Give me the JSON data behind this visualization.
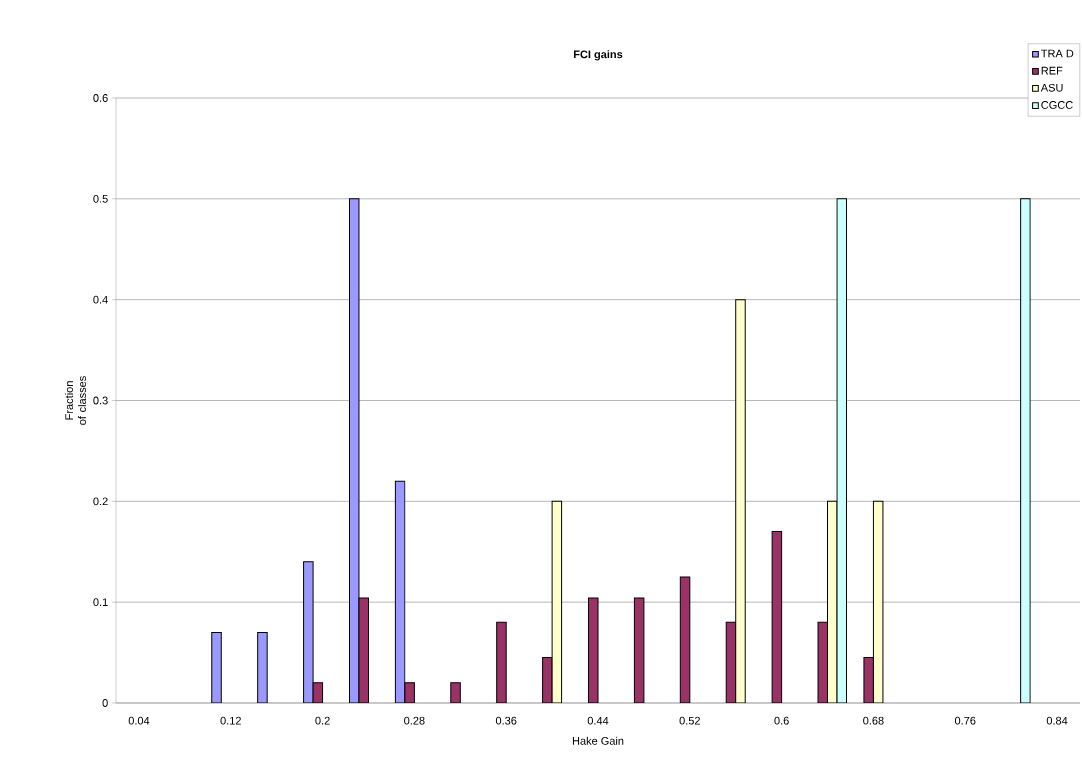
{
  "chart_data": {
    "type": "bar",
    "title": "FCI gains",
    "xlabel": "Hake Gain",
    "ylabel": "Fraction of classes",
    "categories": [
      "0.04",
      null,
      "0.12",
      null,
      "0.2",
      null,
      "0.28",
      null,
      "0.36",
      null,
      "0.44",
      null,
      "0.52",
      null,
      "0.6",
      null,
      "0.68",
      null,
      "0.76",
      null,
      "0.84"
    ],
    "series": [
      {
        "name": "TRA D",
        "color": "#9999ff",
        "values": [
          null,
          null,
          0.07,
          0.07,
          0.14,
          0.5,
          0.22,
          null,
          null,
          null,
          null,
          null,
          null,
          null,
          null,
          null,
          null,
          null,
          null,
          null,
          null
        ]
      },
      {
        "name": "REF",
        "color": "#993366",
        "values": [
          null,
          null,
          null,
          null,
          0.02,
          0.104,
          0.02,
          0.02,
          0.08,
          0.045,
          0.104,
          0.104,
          0.125,
          0.08,
          0.17,
          0.08,
          0.045,
          null,
          null,
          null,
          null
        ]
      },
      {
        "name": "ASU",
        "color": "#ffffcc",
        "values": [
          null,
          null,
          null,
          null,
          null,
          null,
          null,
          null,
          null,
          0.2,
          null,
          null,
          null,
          0.4,
          null,
          0.2,
          0.2,
          null,
          null,
          null,
          null
        ]
      },
      {
        "name": "CGCC",
        "color": "#ccffff",
        "values": [
          null,
          null,
          null,
          null,
          null,
          null,
          null,
          null,
          null,
          null,
          null,
          null,
          null,
          null,
          null,
          0.5,
          null,
          null,
          null,
          0.5,
          null
        ]
      }
    ],
    "ylim": [
      0,
      0.6
    ],
    "yticks": [
      0,
      0.1,
      0.2,
      0.3,
      0.4,
      0.5,
      0.6
    ],
    "grid": "y",
    "legend": "top right"
  }
}
